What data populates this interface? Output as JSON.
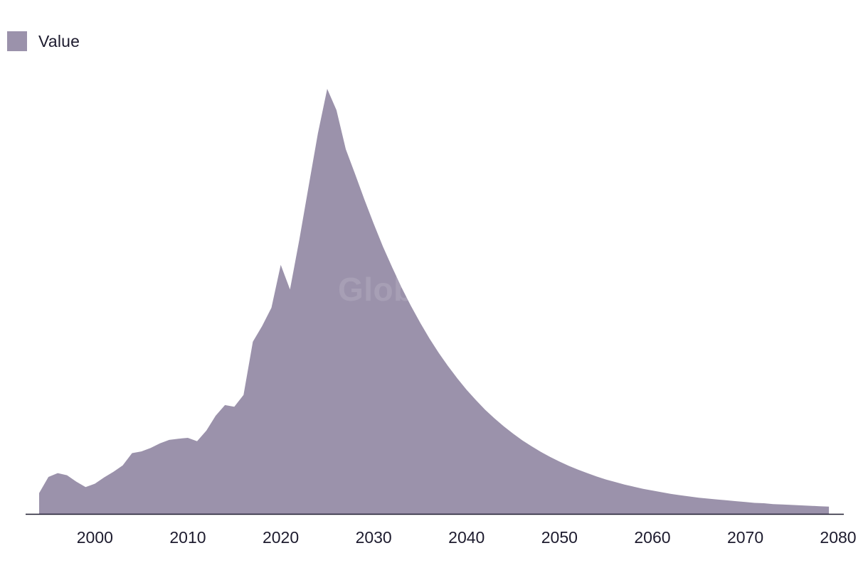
{
  "chart_data": {
    "type": "area",
    "title": "",
    "xlabel": "",
    "ylabel": "",
    "legend_position": "top-left",
    "grid": false,
    "color": "#9b92ab",
    "xlim": [
      1991.5,
      2079.5
    ],
    "ylim": [
      0,
      100
    ],
    "x_ticks": [
      2000,
      2010,
      2020,
      2030,
      2040,
      2050,
      2060,
      2070,
      2080
    ],
    "series": [
      {
        "name": "Value",
        "x": [
          1994,
          1995,
          1996,
          1997,
          1998,
          1999,
          2000,
          2001,
          2002,
          2003,
          2004,
          2005,
          2006,
          2007,
          2008,
          2009,
          2010,
          2011,
          2012,
          2013,
          2014,
          2015,
          2016,
          2017,
          2018,
          2019,
          2020,
          2021,
          2022,
          2023,
          2024,
          2025,
          2026,
          2027,
          2028,
          2029,
          2030,
          2031,
          2032,
          2033,
          2034,
          2035,
          2036,
          2037,
          2038,
          2039,
          2040,
          2041,
          2042,
          2043,
          2044,
          2045,
          2046,
          2047,
          2048,
          2049,
          2050,
          2051,
          2052,
          2053,
          2054,
          2055,
          2056,
          2057,
          2058,
          2059,
          2060,
          2061,
          2062,
          2063,
          2064,
          2065,
          2066,
          2067,
          2068,
          2069,
          2070,
          2071,
          2072,
          2073,
          2074,
          2075,
          2076,
          2077,
          2078,
          2079
        ],
        "values": [
          4.9,
          8.7,
          9.6,
          9.1,
          7.6,
          6.3,
          7.1,
          8.6,
          9.9,
          11.4,
          14.3,
          14.7,
          15.5,
          16.6,
          17.4,
          17.7,
          17.9,
          17.1,
          19.6,
          23.1,
          25.6,
          25.2,
          28.0,
          40.5,
          44.2,
          48.5,
          58.6,
          52.8,
          64.5,
          77.0,
          89.5,
          100.0,
          95.0,
          85.8,
          80.0,
          74.0,
          68.3,
          62.9,
          58.0,
          53.3,
          49.0,
          45.0,
          41.3,
          37.9,
          34.8,
          31.9,
          29.2,
          26.8,
          24.5,
          22.5,
          20.6,
          18.9,
          17.3,
          15.9,
          14.6,
          13.4,
          12.3,
          11.3,
          10.4,
          9.6,
          8.8,
          8.1,
          7.5,
          6.9,
          6.4,
          5.9,
          5.5,
          5.1,
          4.7,
          4.4,
          4.1,
          3.8,
          3.6,
          3.4,
          3.2,
          3.0,
          2.8,
          2.6,
          2.5,
          2.3,
          2.2,
          2.1,
          2.0,
          1.9,
          1.8,
          1.7
        ]
      }
    ]
  },
  "legend": {
    "label": "Value",
    "color": "#9b92ab"
  },
  "watermark": "GlobalData"
}
